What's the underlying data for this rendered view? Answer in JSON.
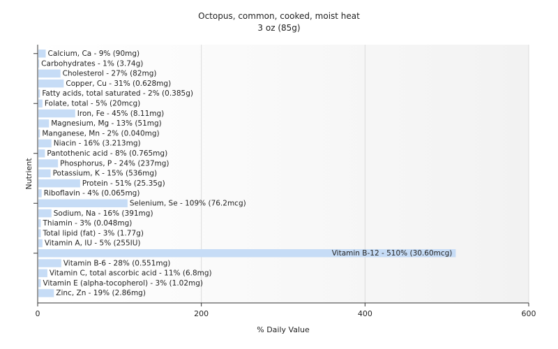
{
  "chart_data": {
    "type": "bar",
    "orientation": "horizontal",
    "title": "Octopus, common, cooked, moist heat",
    "subtitle": "3 oz (85g)",
    "xlabel": "% Daily Value",
    "ylabel": "Nutrient",
    "xlim": [
      0,
      600
    ],
    "xticks": [
      "0",
      "200",
      "400",
      "600"
    ],
    "grid": true,
    "bar_color": "#c6dcf6",
    "categories": [
      "Calcium, Ca",
      "Carbohydrates",
      "Cholesterol",
      "Copper, Cu",
      "Fatty acids, total saturated",
      "Folate, total",
      "Iron, Fe",
      "Magnesium, Mg",
      "Manganese, Mn",
      "Niacin",
      "Pantothenic acid",
      "Phosphorus, P",
      "Potassium, K",
      "Protein",
      "Riboflavin",
      "Selenium, Se",
      "Sodium, Na",
      "Thiamin",
      "Total lipid (fat)",
      "Vitamin A, IU",
      "Vitamin B-12",
      "Vitamin B-6",
      "Vitamin C, total ascorbic acid",
      "Vitamin E (alpha-tocopherol)",
      "Zinc, Zn"
    ],
    "values": [
      9,
      1,
      27,
      31,
      2,
      5,
      45,
      13,
      2,
      16,
      8,
      24,
      15,
      51,
      4,
      109,
      16,
      3,
      3,
      5,
      510,
      28,
      11,
      3,
      19
    ],
    "labels": [
      "Calcium, Ca - 9% (90mg)",
      "Carbohydrates - 1% (3.74g)",
      "Cholesterol - 27% (82mg)",
      "Copper, Cu - 31% (0.628mg)",
      "Fatty acids, total saturated - 2% (0.385g)",
      "Folate, total - 5% (20mcg)",
      "Iron, Fe - 45% (8.11mg)",
      "Magnesium, Mg - 13% (51mg)",
      "Manganese, Mn - 2% (0.040mg)",
      "Niacin - 16% (3.213mg)",
      "Pantothenic acid - 8% (0.765mg)",
      "Phosphorus, P - 24% (237mg)",
      "Potassium, K - 15% (536mg)",
      "Protein - 51% (25.35g)",
      "Riboflavin - 4% (0.065mg)",
      "Selenium, Se - 109% (76.2mcg)",
      "Sodium, Na - 16% (391mg)",
      "Thiamin - 3% (0.048mg)",
      "Total lipid (fat) - 3% (1.77g)",
      "Vitamin A, IU - 5% (255IU)",
      "Vitamin B-12 - 510% (30.60mcg)",
      "Vitamin B-6 - 28% (0.551mg)",
      "Vitamin C, total ascorbic acid - 11% (6.8mg)",
      "Vitamin E (alpha-tocopherol) - 3% (1.02mg)",
      "Zinc, Zn - 19% (2.86mg)"
    ]
  }
}
